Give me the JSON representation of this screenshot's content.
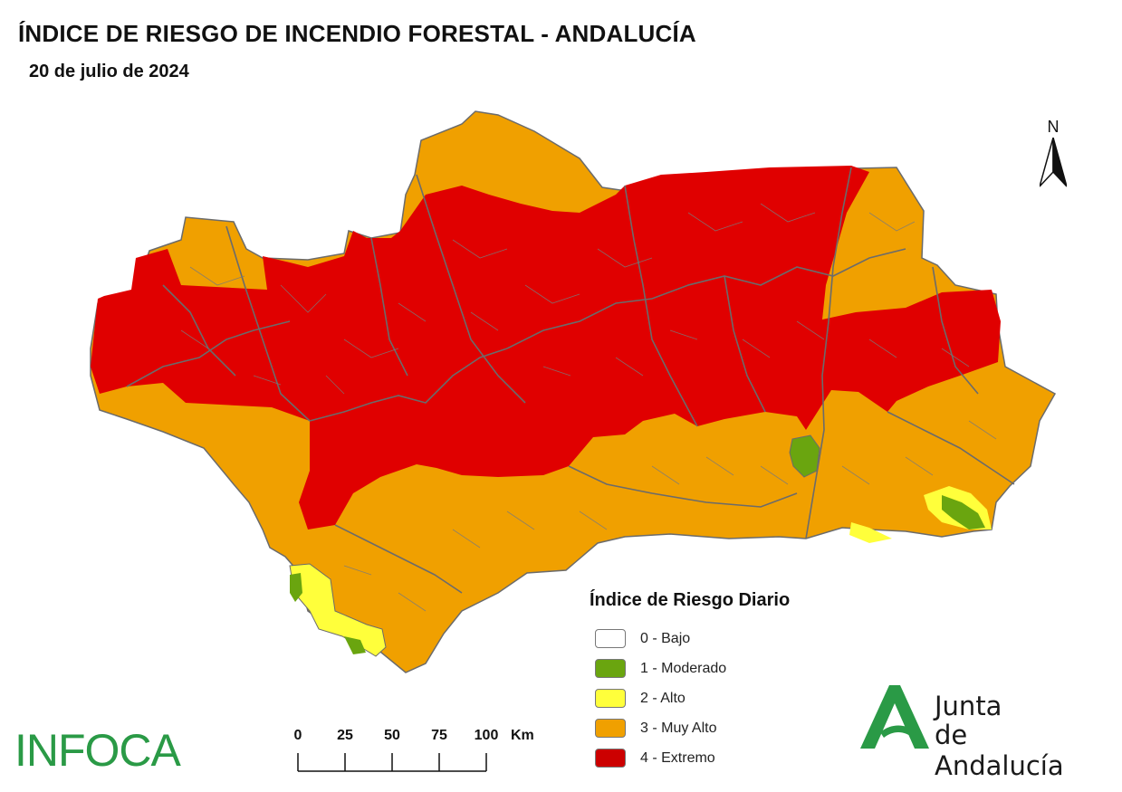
{
  "title": "ÍNDICE DE RIESGO DE INCENDIO FORESTAL - ANDALUCÍA",
  "date": "20 de julio de 2024",
  "north_label": "N",
  "legend": {
    "title": "Índice de Riesgo Diario",
    "items": [
      {
        "label": "0 - Bajo",
        "color": "#ffffff"
      },
      {
        "label": "1 - Moderado",
        "color": "#6aa50f"
      },
      {
        "label": "2 - Alto",
        "color": "#ffff3b"
      },
      {
        "label": "3 - Muy Alto",
        "color": "#f0a000"
      },
      {
        "label": "4 - Extremo",
        "color": "#e00000"
      }
    ]
  },
  "scalebar": {
    "ticks": [
      "0",
      "25",
      "50",
      "75",
      "100"
    ],
    "unit": "Km"
  },
  "logos": {
    "infoca": "INFOCA",
    "junta_line1": "Junta",
    "junta_line2": "de Andalucía"
  },
  "colors": {
    "extremo": "#e00000",
    "muy_alto": "#f0a000",
    "alto": "#ffff3b",
    "moderado": "#6aa50f",
    "boundary": "#6b6b6b",
    "brand_green": "#2a9a46"
  }
}
